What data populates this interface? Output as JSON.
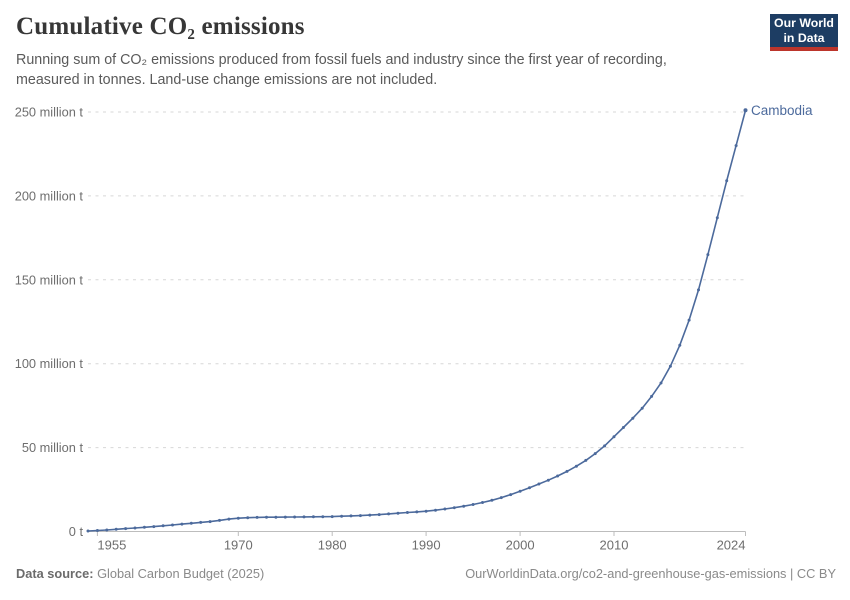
{
  "header": {
    "title": "Cumulative CO₂ emissions",
    "subtitle": "Running sum of CO₂ emissions produced from fossil fuels and industry since the first year of recording, measured in tonnes. Land-use change emissions are not included.",
    "logo": {
      "line1": "Our World",
      "line2": "in Data",
      "background_color": "#1d3d63",
      "stripe_color": "#bc352b"
    }
  },
  "chart_data": {
    "type": "line",
    "title": "Cumulative CO₂ emissions",
    "entity": "Cambodia",
    "unit": "tonnes",
    "xlim": [
      1954,
      2024
    ],
    "ylim": [
      0,
      250
    ],
    "grid": "horizontal-dashed",
    "legend_position": "end-of-line",
    "x_label_ticks": [
      1955,
      1970,
      1980,
      1990,
      2000,
      2010,
      2024
    ],
    "y_ticks": [
      {
        "value": 0,
        "label": "0 t"
      },
      {
        "value": 50,
        "label": "50 million t"
      },
      {
        "value": 100,
        "label": "100 million t"
      },
      {
        "value": 150,
        "label": "150 million t"
      },
      {
        "value": 200,
        "label": "200 million t"
      },
      {
        "value": 250,
        "label": "250 million t"
      }
    ],
    "y_values_unit": "million tonnes",
    "series": [
      {
        "name": "Cambodia",
        "color": "#4c6a9c",
        "x_start_year": 1954,
        "x_step": 1,
        "values": [
          0.3,
          0.6,
          0.9,
          1.3,
          1.7,
          2.1,
          2.5,
          2.9,
          3.4,
          3.9,
          4.4,
          4.9,
          5.4,
          5.9,
          6.6,
          7.4,
          7.9,
          8.2,
          8.4,
          8.5,
          8.55,
          8.6,
          8.65,
          8.7,
          8.75,
          8.8,
          8.9,
          9.1,
          9.3,
          9.5,
          9.8,
          10.1,
          10.5,
          10.9,
          11.3,
          11.7,
          12.1,
          12.7,
          13.4,
          14.2,
          15.1,
          16.1,
          17.3,
          18.6,
          20.2,
          22,
          24,
          26.1,
          28.3,
          30.6,
          33.1,
          35.8,
          38.9,
          42.4,
          46.4,
          51,
          56.5,
          62,
          67.5,
          73.5,
          80.5,
          88.5,
          98.5,
          111,
          126,
          144,
          165,
          187,
          209,
          230,
          251
        ]
      }
    ]
  },
  "footer": {
    "source_label": "Data source:",
    "source_value": "Global Carbon Budget (2025)",
    "credit": "OurWorldinData.org/co2-and-greenhouse-gas-emissions | CC BY"
  }
}
